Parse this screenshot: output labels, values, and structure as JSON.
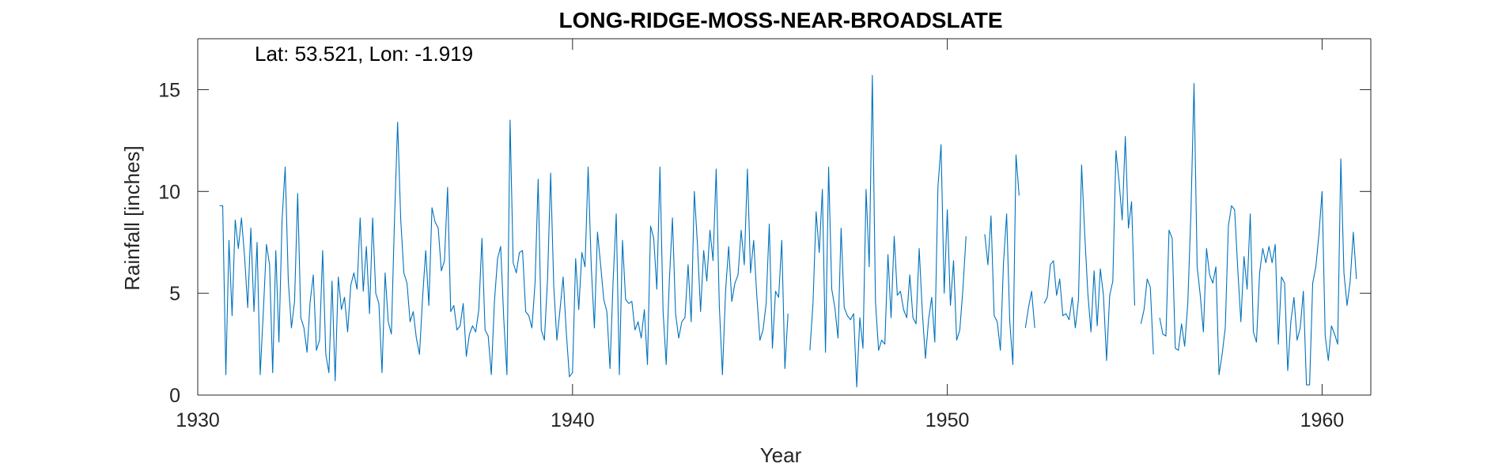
{
  "chart_data": {
    "type": "line",
    "title": "LONG-RIDGE-MOSS-NEAR-BROADSLATE",
    "annotation": "Lat: 53.521, Lon: -1.919",
    "xlabel": "Year",
    "ylabel": "Rainfall [inches]",
    "xlim": [
      1930,
      1961.3
    ],
    "ylim": [
      0,
      17.5
    ],
    "xticks": [
      1930,
      1940,
      1950,
      1960
    ],
    "yticks": [
      0,
      5,
      10,
      15
    ],
    "grid": false,
    "line_color": "#0072BD",
    "series": [
      {
        "start_year": 1930.583,
        "values": [
          9.3,
          9.3,
          1.0,
          7.6,
          3.9,
          8.6,
          7.2,
          8.7,
          6.8,
          4.3,
          8.2,
          4.1,
          7.5,
          1.0,
          4.1,
          7.4,
          6.4,
          1.1,
          7.1,
          2.6,
          8.6,
          11.2,
          5.6,
          3.3,
          4.6,
          9.9,
          3.8,
          3.3,
          2.1,
          4.6,
          5.9,
          2.2,
          2.7,
          7.1,
          2.0,
          1.1,
          5.6,
          0.7,
          5.8,
          4.2,
          4.8,
          3.1,
          5.4,
          6.0,
          5.2,
          8.7,
          5.1,
          7.3,
          4.0,
          8.7,
          5.0,
          4.5,
          1.1,
          6.0,
          3.6,
          3.0,
          8.6,
          13.4,
          8.6,
          6.0,
          5.5,
          3.6,
          4.1,
          2.8,
          2.0,
          4.8,
          7.1,
          4.4,
          9.2,
          8.5,
          8.2,
          6.1,
          6.6,
          10.2,
          4.1,
          4.4,
          3.2,
          3.4,
          4.5,
          1.9,
          3.0,
          3.4,
          3.1,
          4.2,
          7.7,
          3.2,
          2.9,
          1.0,
          4.6,
          6.7,
          7.3,
          3.7,
          1.0,
          13.5,
          6.5,
          6.0,
          7.0,
          7.1,
          4.1,
          3.9,
          3.3,
          5.5,
          10.6,
          3.2,
          2.7,
          5.7,
          10.9,
          5.3,
          2.7,
          4.2,
          5.8,
          3.1,
          0.9,
          1.1,
          6.7,
          4.2,
          7.0,
          6.3,
          11.2,
          6.3,
          3.3,
          8.0,
          6.4,
          4.7,
          4.1,
          1.3,
          5.6,
          8.9,
          1.0,
          7.6,
          4.7,
          4.5,
          4.6,
          3.2,
          3.6,
          2.8,
          4.2,
          1.5,
          8.3,
          7.7,
          5.2,
          11.2,
          4.1,
          1.5,
          5.6,
          8.7,
          4.0,
          2.8,
          3.6,
          3.8,
          6.4,
          3.6,
          10.0,
          7.4,
          4.1,
          7.1,
          5.6,
          8.1,
          6.6,
          11.1,
          4.4,
          1.0,
          5.1,
          7.3,
          4.6,
          5.5,
          5.9,
          8.1,
          6.4,
          11.1,
          6.0,
          7.6,
          4.9,
          2.7,
          3.2,
          4.5,
          8.4,
          2.3,
          5.1,
          4.8,
          7.6,
          1.3,
          4.0,
          null,
          null,
          null,
          null,
          null,
          null,
          2.2,
          4.5,
          9.0,
          7.0,
          10.1,
          2.1,
          11.2,
          5.2,
          4.3,
          2.8,
          8.2,
          4.3,
          3.9,
          3.7,
          4.0,
          0.4,
          3.8,
          2.3,
          10.1,
          6.3,
          15.7,
          4.6,
          2.2,
          2.7,
          2.5,
          6.9,
          3.8,
          7.8,
          4.9,
          5.1,
          4.2,
          3.8,
          5.9,
          3.8,
          3.5,
          7.2,
          4.1,
          1.8,
          3.7,
          4.8,
          2.6,
          10.2,
          12.3,
          5.0,
          9.1,
          4.4,
          6.6,
          2.7,
          3.2,
          5.2,
          7.8,
          null,
          null,
          null,
          null,
          null,
          7.9,
          6.4,
          8.8,
          3.9,
          3.6,
          2.2,
          6.5,
          8.9,
          3.6,
          1.5,
          11.8,
          9.8,
          null,
          3.3,
          4.3,
          5.1,
          3.3,
          null,
          null,
          4.5,
          4.8,
          6.4,
          6.6,
          4.9,
          5.7,
          3.9,
          4.0,
          3.7,
          4.8,
          3.3,
          4.7,
          11.3,
          7.9,
          5.0,
          3.1,
          6.1,
          3.4,
          6.2,
          4.9,
          1.7,
          4.9,
          5.6,
          12.0,
          10.5,
          8.6,
          12.7,
          8.2,
          9.5,
          4.4,
          null,
          3.5,
          4.2,
          5.7,
          5.3,
          2.0,
          null,
          3.8,
          3.0,
          2.9,
          8.1,
          7.7,
          2.3,
          2.2,
          3.5,
          2.4,
          4.5,
          8.9,
          15.3,
          6.3,
          4.9,
          3.1,
          7.2,
          5.9,
          5.5,
          6.3,
          1.0,
          2.0,
          3.3,
          8.3,
          9.3,
          9.1,
          6.2,
          3.6,
          6.8,
          5.2,
          8.9,
          3.1,
          2.6,
          6.0,
          7.2,
          6.5,
          7.3,
          6.5,
          7.4,
          2.5,
          5.8,
          5.5,
          1.2,
          3.6,
          4.8,
          2.7,
          3.3,
          5.1,
          0.5,
          0.5,
          5.5,
          6.3,
          7.9,
          10.0,
          2.9,
          1.7,
          3.4,
          3.0,
          2.5,
          11.6,
          6.0,
          4.4,
          5.6,
          8.0,
          5.7
        ]
      }
    ]
  }
}
